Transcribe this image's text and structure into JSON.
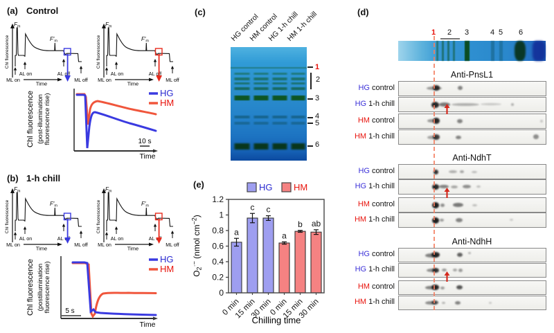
{
  "schematic": {
    "y_axis_label": "Chl fluorescence",
    "f_label": "F",
    "f_prime_label": "F′",
    "sub_m": "m",
    "ml_on": "ML on",
    "al_on": "AL on",
    "al_off": "AL off",
    "ml_off": "ML off",
    "time_label": "Time"
  },
  "panel_a": {
    "label": "(a)",
    "title": "Control",
    "ylabel_line1": "Chl fluorescence",
    "ylabel_line2": "(post-illumination",
    "ylabel_line3": "fluorescence rise)",
    "legend_hg": "HG",
    "legend_hm": "HM",
    "scale_bar": "10 s",
    "xlabel": "Time"
  },
  "panel_b": {
    "label": "(b)",
    "title": "1-h chill",
    "ylabel_line1": "Chl fluorescence",
    "ylabel_line2": "(postillumination",
    "ylabel_line3": "fluorescence rise)",
    "legend_hg": "HG",
    "legend_hm": "HM",
    "scale_bar": "5 s",
    "xlabel": "Time"
  },
  "panel_c": {
    "label": "(c)",
    "lanes": [
      "HG control",
      "HM control",
      "HG 1-h chill",
      "HM 1-h chill"
    ],
    "markers": [
      "1",
      "2",
      "3",
      "4",
      "5",
      "6"
    ]
  },
  "panel_d": {
    "label": "(d)",
    "strip_markers": [
      "1",
      "2",
      "3",
      "4",
      "5",
      "6"
    ],
    "sections": [
      {
        "title": "Anti-PnsL1"
      },
      {
        "title": "Anti-NdhT"
      },
      {
        "title": "Anti-NdhH"
      }
    ],
    "rows": [
      {
        "group": "HG",
        "condition": "control"
      },
      {
        "group": "HG",
        "condition": "1-h chill"
      },
      {
        "group": "HM",
        "condition": "control"
      },
      {
        "group": "HM",
        "condition": "1-h chill"
      }
    ]
  },
  "panel_e": {
    "label": "(e)"
  },
  "colors": {
    "hg_line": "#3a3ae0",
    "hm_line": "#f0563c",
    "hg_text": "#2a2ad0",
    "hm_text": "#e8130c",
    "hg_bar": "#9e9ef0",
    "hm_bar": "#f58282",
    "marker_red": "#e8130c",
    "dashed_line": "#f37e60"
  },
  "chart_data": {
    "type": "bar",
    "categories": [
      "0 min",
      "15 min",
      "30 min"
    ],
    "series": [
      {
        "name": "HG",
        "color": "#9e9ef0",
        "values": [
          0.65,
          0.96,
          0.96
        ],
        "errors": [
          0.05,
          0.06,
          0.03
        ],
        "sig_labels": [
          "a",
          "c",
          "c"
        ]
      },
      {
        "name": "HM",
        "color": "#f58282",
        "values": [
          0.64,
          0.79,
          0.78
        ],
        "errors": [
          0.015,
          0.012,
          0.03
        ],
        "sig_labels": [
          "a",
          "b",
          "ab"
        ]
      }
    ],
    "xlabel": "Chilling time",
    "ylabel": "O2·− (nmol cm−2)",
    "ylabel_parts": {
      "base": "O",
      "sub": "2",
      "sup": "·−",
      "unit": " (nmol cm",
      "unit_sup": "−2",
      "unit_close": ")"
    },
    "ylim": [
      0,
      1.2
    ],
    "yticks": [
      0,
      0.2,
      0.4,
      0.6,
      0.8,
      1,
      1.2
    ],
    "grid": false,
    "legend_position": "top"
  }
}
